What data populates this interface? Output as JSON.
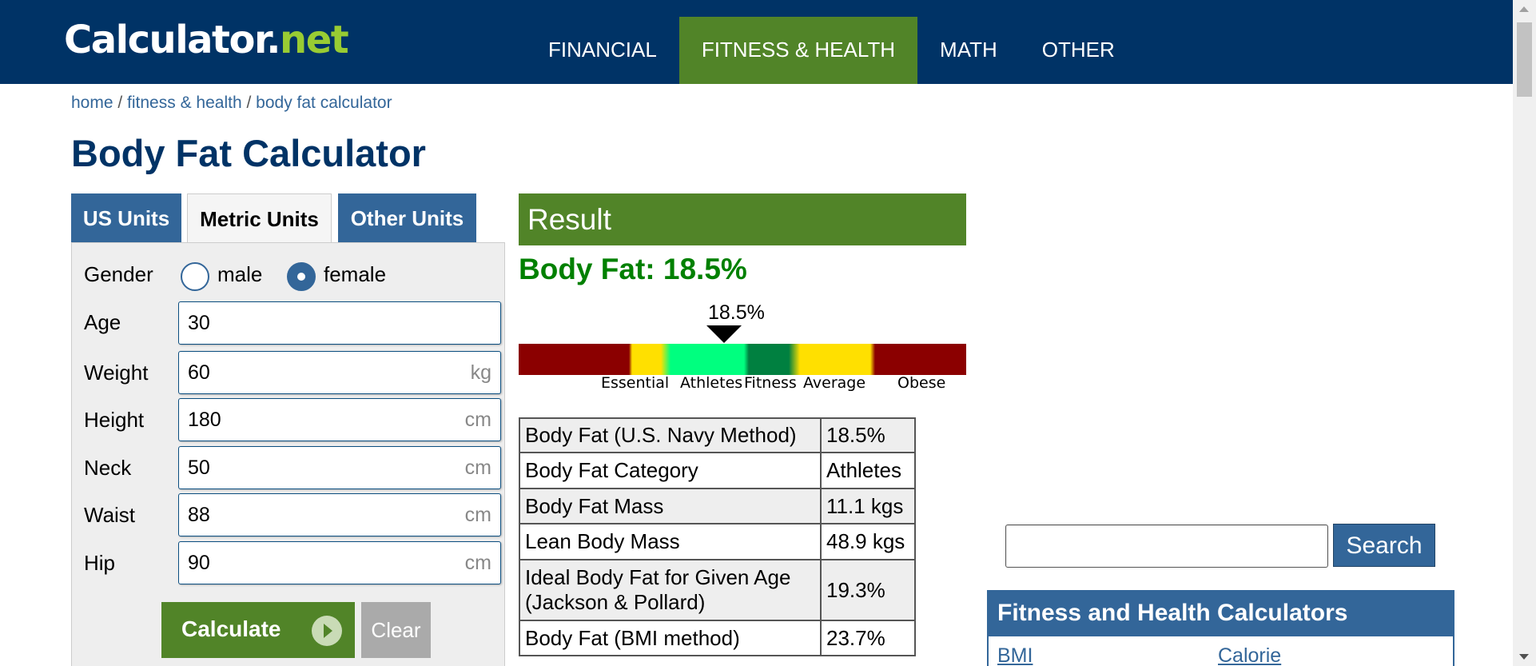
{
  "logo": {
    "main": "Calculator.",
    "accent": "net"
  },
  "nav": [
    {
      "label": "FINANCIAL"
    },
    {
      "label": "FITNESS & HEALTH"
    },
    {
      "label": "MATH"
    },
    {
      "label": "OTHER"
    }
  ],
  "breadcrumb": {
    "home": "home",
    "sep": " / ",
    "section": "fitness & health",
    "page": "body fat calculator"
  },
  "page_title": "Body Fat Calculator",
  "tabs": [
    {
      "label": "US Units"
    },
    {
      "label": "Metric Units"
    },
    {
      "label": "Other Units"
    }
  ],
  "form": {
    "gender_label": "Gender",
    "male_label": "male",
    "female_label": "female",
    "selected_gender": "female",
    "age": {
      "label": "Age",
      "value": "30"
    },
    "weight": {
      "label": "Weight",
      "value": "60",
      "unit": "kg"
    },
    "height": {
      "label": "Height",
      "value": "180",
      "unit": "cm"
    },
    "neck": {
      "label": "Neck",
      "value": "50",
      "unit": "cm"
    },
    "waist": {
      "label": "Waist",
      "value": "88",
      "unit": "cm"
    },
    "hip": {
      "label": "Hip",
      "value": "90",
      "unit": "cm"
    },
    "calculate_label": "Calculate",
    "clear_label": "Clear"
  },
  "result": {
    "header": "Result",
    "headline": "Body Fat: 18.5%",
    "indicator_value": "18.5%",
    "gauge_labels": [
      "Essential",
      "Athletes",
      "Fitness",
      "Average",
      "Obese"
    ],
    "rows": [
      {
        "label": "Body Fat (U.S. Navy Method)",
        "value": "18.5%"
      },
      {
        "label": "Body Fat Category",
        "value": "Athletes"
      },
      {
        "label": "Body Fat Mass",
        "value": "11.1 kgs"
      },
      {
        "label": "Lean Body Mass",
        "value": "48.9 kgs"
      },
      {
        "label": "Ideal Body Fat for Given Age (Jackson & Pollard)",
        "value": "19.3%"
      },
      {
        "label": "Body Fat (BMI method)",
        "value": "23.7%"
      }
    ]
  },
  "sidebar": {
    "search_value": "",
    "search_button": "Search",
    "box_title": "Fitness and Health Calculators",
    "links": [
      "BMI",
      "Calorie"
    ]
  },
  "colors": {
    "header_bg": "#003366",
    "accent_green": "#518428",
    "blue": "#336699",
    "result_green": "#008000"
  }
}
